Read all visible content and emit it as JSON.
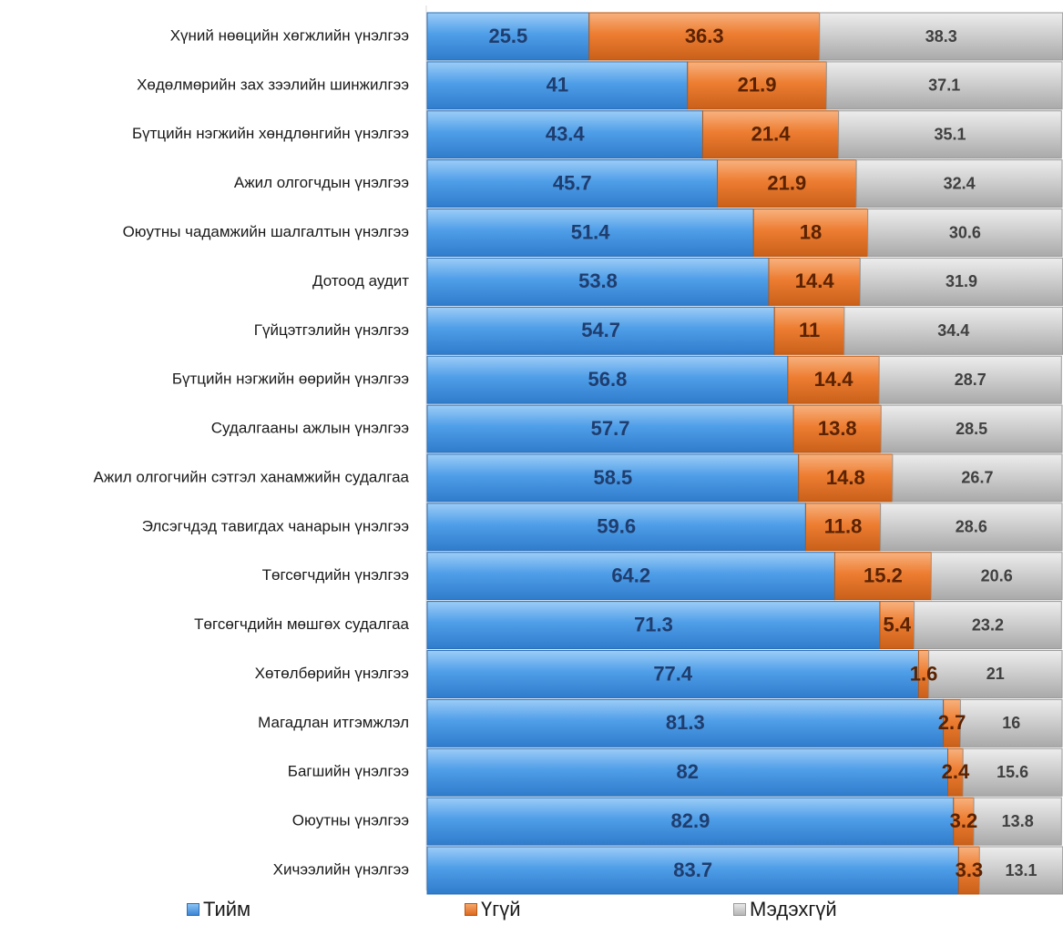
{
  "chart_data": {
    "type": "bar",
    "orientation": "horizontal",
    "stacked": true,
    "xlim": [
      0,
      100
    ],
    "categories": [
      "Хүний нөөцийн хөгжлийн үнэлгээ",
      "Хөдөлмөрийн зах зээлийн шинжилгээ",
      "Бүтцийн нэгжийн хөндлөнгийн үнэлгээ",
      "Ажил олгогчдын үнэлгээ",
      "Оюутны чадамжийн шалгалтын үнэлгээ",
      "Дотоод аудит",
      "Гүйцэтгэлийн үнэлгээ",
      "Бүтцийн нэгжийн өөрийн үнэлгээ",
      "Судалгааны ажлын үнэлгээ",
      "Ажил олгогчийн сэтгэл ханамжийн судалгаа",
      "Элсэгчдэд тавигдах чанарын үнэлгээ",
      "Төгсөгчдийн үнэлгээ",
      "Төгсөгчдийн мөшгөх судалгаа",
      "Хөтөлбөрийн үнэлгээ",
      "Магадлан итгэмжлэл",
      "Багшийн үнэлгээ",
      "Оюутны үнэлгээ",
      "Хичээлийн үнэлгээ"
    ],
    "series": [
      {
        "name": "Тийм",
        "color": "#4f9ee8",
        "label_color": "#1f3d6e",
        "values": [
          25.5,
          41,
          43.4,
          45.7,
          51.4,
          53.8,
          54.7,
          56.8,
          57.7,
          58.5,
          59.6,
          64.2,
          71.3,
          77.4,
          81.3,
          82,
          82.9,
          83.7
        ]
      },
      {
        "name": "Үгүй",
        "color": "#ed7d31",
        "label_color": "#5a2200",
        "values": [
          36.3,
          21.9,
          21.4,
          21.9,
          18,
          14.4,
          11,
          14.4,
          13.8,
          14.8,
          11.8,
          15.2,
          5.4,
          1.6,
          2.7,
          2.4,
          3.2,
          3.3
        ]
      },
      {
        "name": "Мэдэхгүй",
        "color": "#d0d0d0",
        "label_color": "#404040",
        "values": [
          38.3,
          37.1,
          35.1,
          32.4,
          30.6,
          31.9,
          34.4,
          28.7,
          28.5,
          26.7,
          28.6,
          20.6,
          23.2,
          21,
          16,
          15.6,
          13.8,
          13.1
        ]
      }
    ],
    "legend": {
      "position": "bottom"
    }
  }
}
